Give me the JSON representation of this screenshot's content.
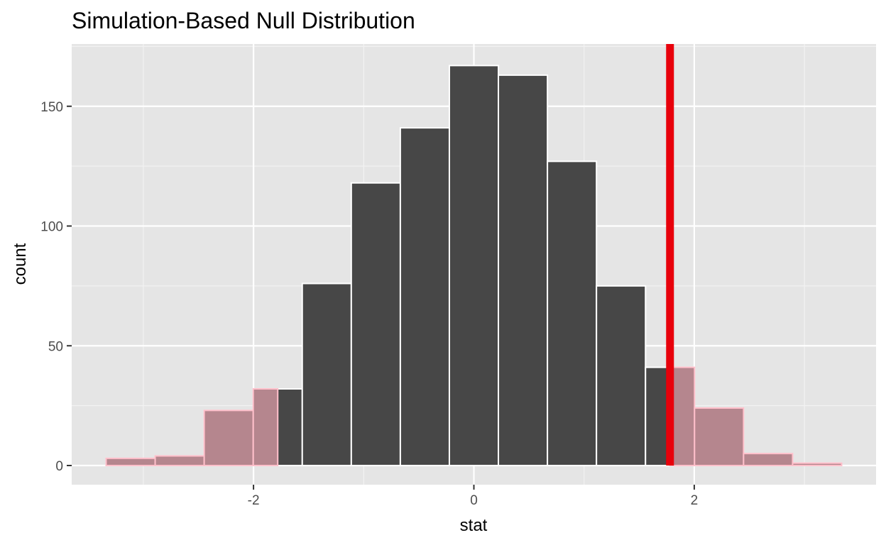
{
  "chart_data": {
    "type": "bar",
    "title": "Simulation-Based Null Distribution",
    "xlabel": "stat",
    "ylabel": "count",
    "xlim": [
      -3.65,
      3.65
    ],
    "ylim": [
      -8,
      176
    ],
    "x_ticks": [
      -2,
      0,
      2
    ],
    "x_tick_labels": [
      "-2",
      "0",
      "2"
    ],
    "y_ticks": [
      0,
      50,
      100,
      150
    ],
    "y_tick_labels": [
      "0",
      "50",
      "100",
      "150"
    ],
    "grid": true,
    "bin_width": 0.445,
    "bins": [
      {
        "center": -3.115,
        "count": 3
      },
      {
        "center": -2.67,
        "count": 4
      },
      {
        "center": -2.225,
        "count": 23
      },
      {
        "center": -1.78,
        "count": 32
      },
      {
        "center": -1.335,
        "count": 76
      },
      {
        "center": -0.89,
        "count": 118
      },
      {
        "center": -0.445,
        "count": 141
      },
      {
        "center": 0.0,
        "count": 167
      },
      {
        "center": 0.445,
        "count": 163
      },
      {
        "center": 0.89,
        "count": 127
      },
      {
        "center": 1.335,
        "count": 75
      },
      {
        "center": 1.78,
        "count": 41
      },
      {
        "center": 2.225,
        "count": 24
      },
      {
        "center": 2.67,
        "count": 5
      },
      {
        "center": 3.115,
        "count": 1
      }
    ],
    "observed_stat": 1.78,
    "shaded_tail_cutoffs": [
      -1.78,
      1.78
    ],
    "colors": {
      "bar_fill": "#474747",
      "bar_outline": "#ffffff",
      "shade_fill": "#b5868e",
      "shade_outline": "#ffc0cb",
      "obs_line": "#e8000b",
      "panel_bg": "#e5e5e5",
      "grid_major": "#ffffff",
      "grid_minor": "#f2f2f2"
    }
  }
}
